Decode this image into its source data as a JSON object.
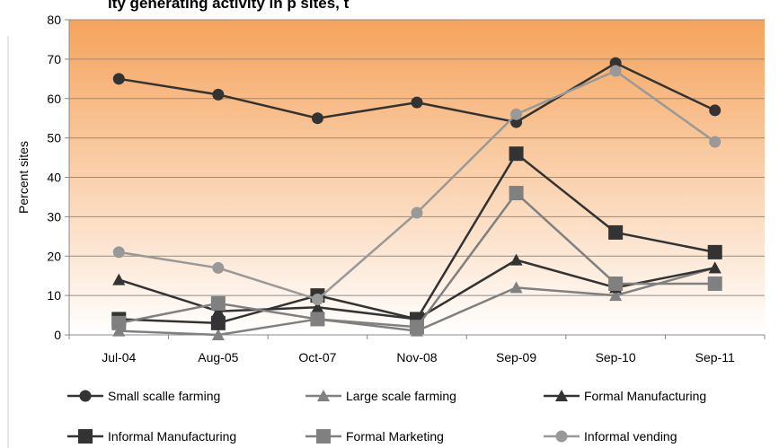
{
  "chart_data": {
    "type": "line",
    "title": "ity generating activity in p sites, t",
    "ylabel": "Percent sites",
    "xlabel": "",
    "ylim": [
      0,
      80
    ],
    "yticks": [
      0,
      10,
      20,
      30,
      40,
      50,
      60,
      70,
      80
    ],
    "categories": [
      "Jul-04",
      "Aug-05",
      "Oct-07",
      "Nov-08",
      "Sep-09",
      "Sep-10",
      "Sep-11"
    ],
    "background_gradient": [
      "#f5a35c",
      "#ffffff"
    ],
    "grid": true,
    "legend_position": "bottom",
    "series": [
      {
        "name": "Small scalle farming",
        "values": [
          65,
          61,
          55,
          59,
          54,
          69,
          57
        ],
        "color": "#333333",
        "marker": "circle"
      },
      {
        "name": "Large scale farming",
        "values": [
          1,
          0,
          4,
          1,
          12,
          10,
          17
        ],
        "color": "#808080",
        "marker": "triangle"
      },
      {
        "name": "Formal Manufacturing",
        "values": [
          14,
          6,
          7,
          4,
          19,
          12,
          17
        ],
        "color": "#333333",
        "marker": "triangle"
      },
      {
        "name": "Informal Manufacturing",
        "values": [
          4,
          3,
          10,
          4,
          46,
          26,
          21
        ],
        "color": "#333333",
        "marker": "square"
      },
      {
        "name": "Formal Marketing",
        "values": [
          3,
          8,
          4,
          2,
          36,
          13,
          13
        ],
        "color": "#808080",
        "marker": "square"
      },
      {
        "name": "Informal vending",
        "values": [
          21,
          17,
          9,
          31,
          56,
          67,
          49
        ],
        "color": "#999999",
        "marker": "circle"
      }
    ]
  }
}
